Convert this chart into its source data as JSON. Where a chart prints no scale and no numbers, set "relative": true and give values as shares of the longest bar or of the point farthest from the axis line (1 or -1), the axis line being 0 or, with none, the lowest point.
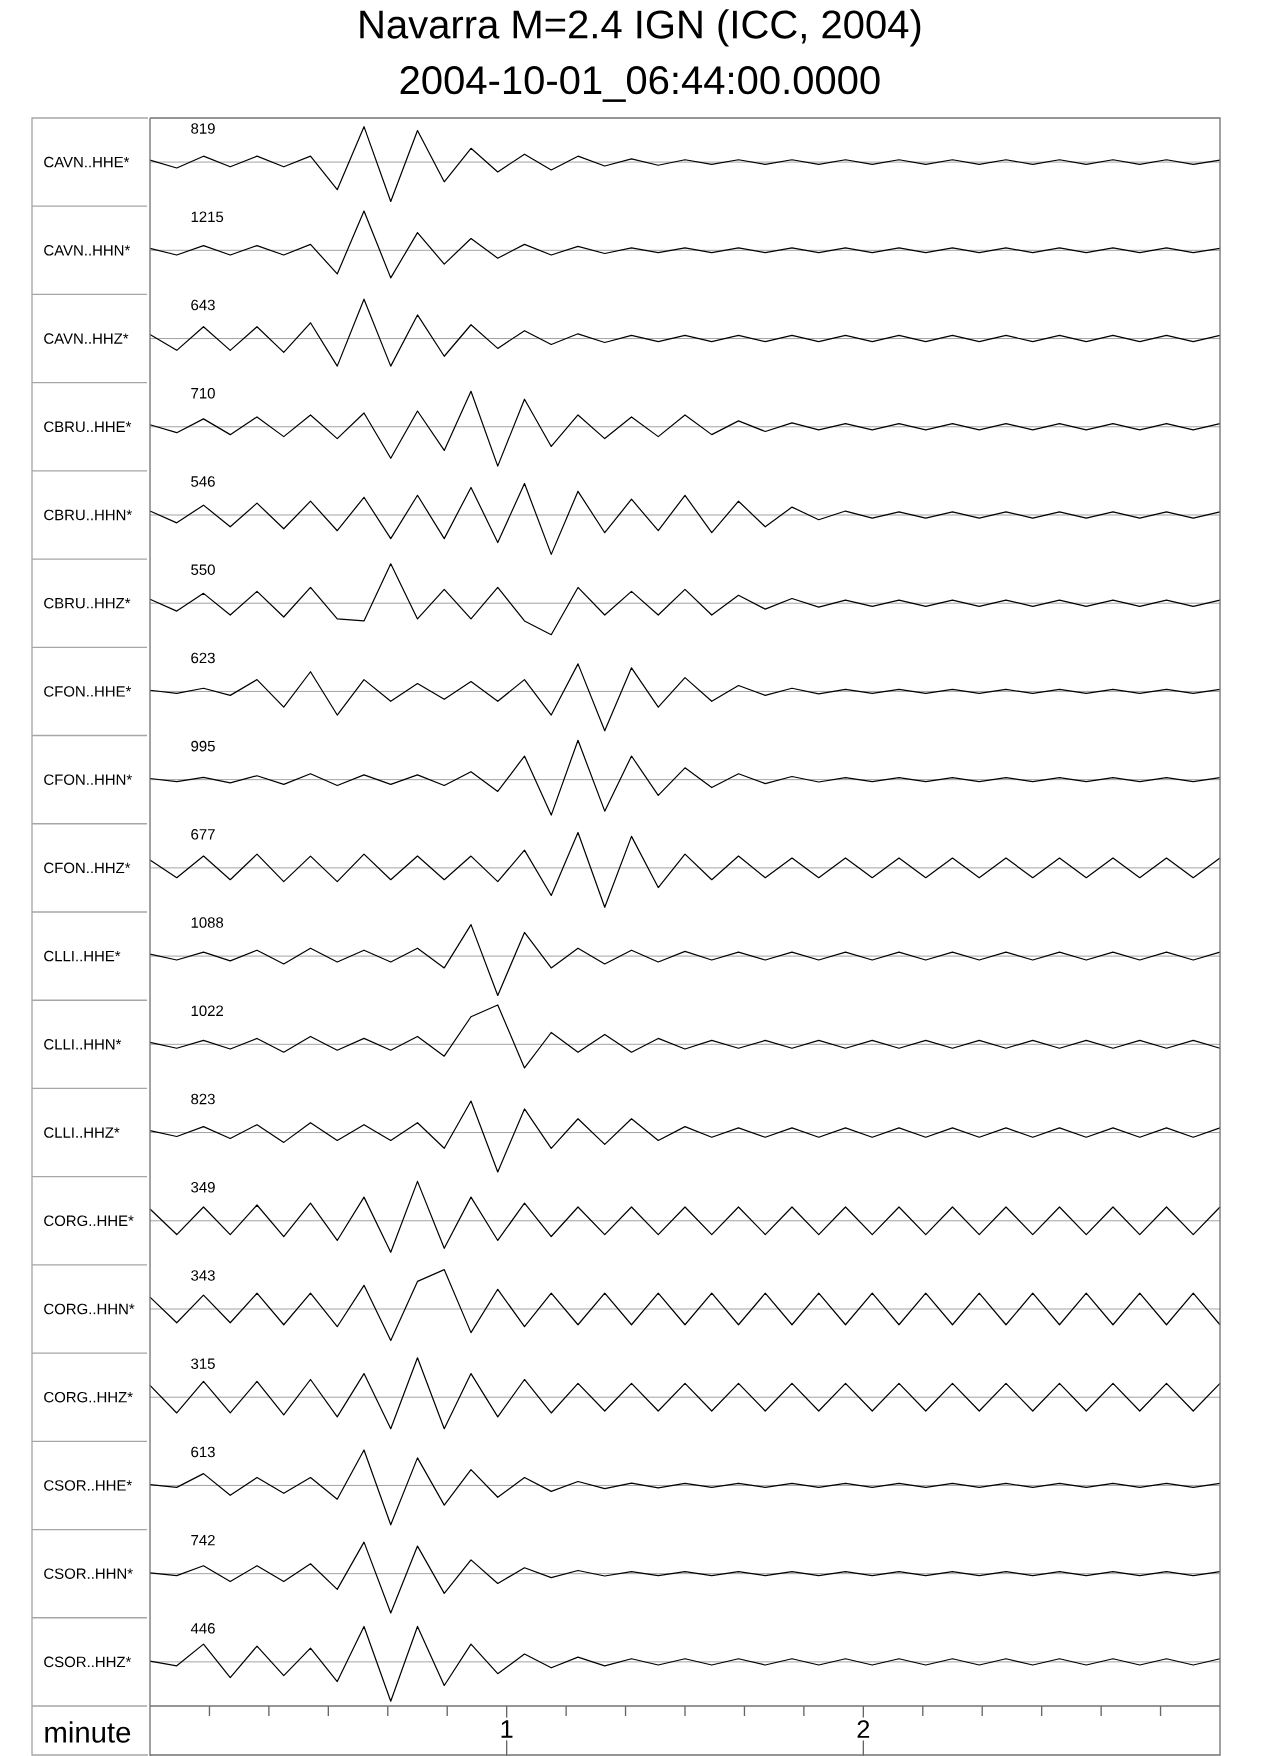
{
  "chart_data": [
    {
      "type": "line",
      "title": "Navarra M=2.4 IGN (ICC, 2004)",
      "subtitle": "2004-10-01_06:44:00.0000",
      "ylabel": "CAVN..HHE*",
      "annotations": [
        "819"
      ],
      "relative": true,
      "tick_labels": false,
      "color": "#000000",
      "categories": [
        null,
        null,
        null,
        null,
        null,
        null,
        null,
        null,
        null,
        null,
        null,
        null,
        null,
        null,
        null,
        null,
        null,
        null,
        null,
        null,
        null,
        null,
        null,
        null,
        null,
        null,
        null,
        null,
        null,
        null,
        null,
        null,
        null,
        null,
        null,
        null,
        null,
        null,
        null,
        null,
        null
      ],
      "values": [
        0.05,
        -0.15,
        0.15,
        -0.12,
        0.15,
        -0.12,
        0.15,
        -0.7,
        0.9,
        -1,
        0.8,
        -0.5,
        0.35,
        -0.25,
        0.2,
        -0.2,
        0.15,
        -0.1,
        0.08,
        -0.08,
        0.06,
        -0.06,
        0.06,
        -0.06,
        0.06,
        -0.06,
        0.06,
        -0.06,
        0.06,
        -0.06,
        0.06,
        -0.06,
        0.06,
        -0.06,
        0.06,
        -0.06,
        0.06,
        -0.06,
        0.06,
        -0.06,
        0.05
      ]
    },
    {
      "type": "line",
      "ylabel": "CAVN..HHN*",
      "annotations": [
        "1215"
      ],
      "relative": true,
      "tick_labels": false,
      "color": "#000000",
      "categories": [
        null,
        null,
        null,
        null,
        null,
        null,
        null,
        null,
        null,
        null,
        null,
        null,
        null,
        null,
        null,
        null,
        null,
        null,
        null,
        null,
        null,
        null,
        null,
        null,
        null,
        null,
        null,
        null,
        null,
        null,
        null,
        null,
        null,
        null,
        null,
        null,
        null,
        null,
        null,
        null,
        null
      ],
      "values": [
        0.05,
        -0.12,
        0.12,
        -0.12,
        0.12,
        -0.12,
        0.15,
        -0.6,
        1,
        -0.7,
        0.45,
        -0.35,
        0.3,
        -0.2,
        0.15,
        -0.12,
        0.1,
        -0.08,
        0.06,
        -0.06,
        0.06,
        -0.06,
        0.06,
        -0.06,
        0.06,
        -0.06,
        0.06,
        -0.06,
        0.06,
        -0.06,
        0.06,
        -0.06,
        0.06,
        -0.06,
        0.06,
        -0.06,
        0.06,
        -0.06,
        0.06,
        -0.06,
        0.05
      ]
    },
    {
      "type": "line",
      "ylabel": "CAVN..HHZ*",
      "annotations": [
        "643"
      ],
      "relative": true,
      "tick_labels": false,
      "color": "#000000",
      "categories": [
        null,
        null,
        null,
        null,
        null,
        null,
        null,
        null,
        null,
        null,
        null,
        null,
        null,
        null,
        null,
        null,
        null,
        null,
        null,
        null,
        null,
        null,
        null,
        null,
        null,
        null,
        null,
        null,
        null,
        null,
        null,
        null,
        null,
        null,
        null,
        null,
        null,
        null,
        null,
        null,
        null
      ],
      "values": [
        0.1,
        -0.3,
        0.3,
        -0.3,
        0.3,
        -0.35,
        0.4,
        -0.7,
        1,
        -0.7,
        0.6,
        -0.45,
        0.35,
        -0.25,
        0.2,
        -0.15,
        0.12,
        -0.1,
        0.08,
        -0.08,
        0.08,
        -0.08,
        0.08,
        -0.08,
        0.08,
        -0.08,
        0.08,
        -0.08,
        0.08,
        -0.08,
        0.08,
        -0.08,
        0.08,
        -0.08,
        0.08,
        -0.08,
        0.08,
        -0.08,
        0.08,
        -0.08,
        0.08
      ]
    },
    {
      "type": "line",
      "ylabel": "CBRU..HHE*",
      "annotations": [
        "710"
      ],
      "relative": true,
      "tick_labels": false,
      "color": "#000000",
      "categories": [
        null,
        null,
        null,
        null,
        null,
        null,
        null,
        null,
        null,
        null,
        null,
        null,
        null,
        null,
        null,
        null,
        null,
        null,
        null,
        null,
        null,
        null,
        null,
        null,
        null,
        null,
        null,
        null,
        null,
        null,
        null,
        null,
        null,
        null,
        null,
        null,
        null,
        null,
        null,
        null,
        null
      ],
      "values": [
        0.05,
        -0.15,
        0.2,
        -0.2,
        0.25,
        -0.25,
        0.3,
        -0.3,
        0.35,
        -0.8,
        0.4,
        -0.6,
        0.9,
        -1,
        0.7,
        -0.5,
        0.3,
        -0.3,
        0.25,
        -0.25,
        0.3,
        -0.2,
        0.15,
        -0.12,
        0.1,
        -0.08,
        0.08,
        -0.08,
        0.08,
        -0.08,
        0.08,
        -0.08,
        0.08,
        -0.08,
        0.08,
        -0.08,
        0.08,
        -0.08,
        0.08,
        -0.08,
        0.08
      ]
    },
    {
      "type": "line",
      "ylabel": "CBRU..HHN*",
      "annotations": [
        "546"
      ],
      "relative": true,
      "tick_labels": false,
      "color": "#000000",
      "categories": [
        null,
        null,
        null,
        null,
        null,
        null,
        null,
        null,
        null,
        null,
        null,
        null,
        null,
        null,
        null,
        null,
        null,
        null,
        null,
        null,
        null,
        null,
        null,
        null,
        null,
        null,
        null,
        null,
        null,
        null,
        null,
        null,
        null,
        null,
        null,
        null,
        null,
        null,
        null,
        null,
        null
      ],
      "values": [
        0.1,
        -0.2,
        0.25,
        -0.3,
        0.3,
        -0.35,
        0.35,
        -0.4,
        0.45,
        -0.6,
        0.5,
        -0.6,
        0.7,
        -0.7,
        0.8,
        -1,
        0.6,
        -0.45,
        0.4,
        -0.4,
        0.5,
        -0.45,
        0.35,
        -0.3,
        0.2,
        -0.12,
        0.1,
        -0.08,
        0.08,
        -0.08,
        0.08,
        -0.08,
        0.08,
        -0.08,
        0.08,
        -0.08,
        0.08,
        -0.08,
        0.08,
        -0.08,
        0.08
      ]
    },
    {
      "type": "line",
      "ylabel": "CBRU..HHZ*",
      "annotations": [
        "550"
      ],
      "relative": true,
      "tick_labels": false,
      "color": "#000000",
      "categories": [
        null,
        null,
        null,
        null,
        null,
        null,
        null,
        null,
        null,
        null,
        null,
        null,
        null,
        null,
        null,
        null,
        null,
        null,
        null,
        null,
        null,
        null,
        null,
        null,
        null,
        null,
        null,
        null,
        null,
        null,
        null,
        null,
        null,
        null,
        null,
        null,
        null,
        null,
        null,
        null,
        null
      ],
      "values": [
        0.1,
        -0.2,
        0.25,
        -0.3,
        0.3,
        -0.35,
        0.4,
        -0.4,
        -0.45,
        1,
        -0.4,
        0.35,
        -0.4,
        0.4,
        -0.45,
        -0.8,
        0.4,
        -0.3,
        0.3,
        -0.3,
        0.35,
        -0.3,
        0.2,
        -0.15,
        0.12,
        -0.1,
        0.08,
        -0.08,
        0.08,
        -0.08,
        0.08,
        -0.08,
        0.08,
        -0.08,
        0.08,
        -0.08,
        0.08,
        -0.08,
        0.08,
        -0.08,
        0.08
      ]
    },
    {
      "type": "line",
      "ylabel": "CFON..HHE*",
      "annotations": [
        "623"
      ],
      "relative": true,
      "tick_labels": false,
      "color": "#000000",
      "categories": [
        null,
        null,
        null,
        null,
        null,
        null,
        null,
        null,
        null,
        null,
        null,
        null,
        null,
        null,
        null,
        null,
        null,
        null,
        null,
        null,
        null,
        null,
        null,
        null,
        null,
        null,
        null,
        null,
        null,
        null,
        null,
        null,
        null,
        null,
        null,
        null,
        null,
        null,
        null,
        null,
        null
      ],
      "values": [
        0.03,
        -0.05,
        0.08,
        -0.1,
        0.3,
        -0.4,
        0.5,
        -0.6,
        0.3,
        -0.25,
        0.2,
        -0.2,
        0.25,
        -0.25,
        0.3,
        -0.6,
        0.7,
        -1,
        0.6,
        -0.4,
        0.35,
        -0.25,
        0.15,
        -0.1,
        0.08,
        -0.06,
        0.05,
        -0.05,
        0.05,
        -0.05,
        0.05,
        -0.05,
        0.05,
        -0.05,
        0.05,
        -0.05,
        0.05,
        -0.05,
        0.05,
        -0.05,
        0.05
      ]
    },
    {
      "type": "line",
      "ylabel": "CFON..HHN*",
      "annotations": [
        "995"
      ],
      "relative": true,
      "tick_labels": false,
      "color": "#000000",
      "categories": [
        null,
        null,
        null,
        null,
        null,
        null,
        null,
        null,
        null,
        null,
        null,
        null,
        null,
        null,
        null,
        null,
        null,
        null,
        null,
        null,
        null,
        null,
        null,
        null,
        null,
        null,
        null,
        null,
        null,
        null,
        null,
        null,
        null,
        null,
        null,
        null,
        null,
        null,
        null,
        null,
        null
      ],
      "values": [
        0.03,
        -0.05,
        0.06,
        -0.08,
        0.1,
        -0.12,
        0.15,
        -0.15,
        0.12,
        -0.12,
        0.12,
        -0.15,
        0.2,
        -0.3,
        0.6,
        -0.9,
        1,
        -0.8,
        0.6,
        -0.4,
        0.3,
        -0.2,
        0.15,
        -0.1,
        0.08,
        -0.06,
        0.05,
        -0.05,
        0.05,
        -0.05,
        0.05,
        -0.05,
        0.05,
        -0.05,
        0.05,
        -0.05,
        0.05,
        -0.05,
        0.05,
        -0.05,
        0.05
      ]
    },
    {
      "type": "line",
      "ylabel": "CFON..HHZ*",
      "annotations": [
        "677"
      ],
      "relative": true,
      "tick_labels": false,
      "color": "#000000",
      "categories": [
        null,
        null,
        null,
        null,
        null,
        null,
        null,
        null,
        null,
        null,
        null,
        null,
        null,
        null,
        null,
        null,
        null,
        null,
        null,
        null,
        null,
        null,
        null,
        null,
        null,
        null,
        null,
        null,
        null,
        null,
        null,
        null,
        null,
        null,
        null,
        null,
        null,
        null,
        null,
        null,
        null
      ],
      "values": [
        0.2,
        -0.25,
        0.3,
        -0.3,
        0.35,
        -0.35,
        0.3,
        -0.35,
        0.35,
        -0.3,
        0.3,
        -0.3,
        0.3,
        -0.35,
        0.45,
        -0.7,
        0.9,
        -1,
        0.8,
        -0.5,
        0.35,
        -0.3,
        0.3,
        -0.25,
        0.25,
        -0.25,
        0.25,
        -0.25,
        0.25,
        -0.25,
        0.25,
        -0.25,
        0.25,
        -0.25,
        0.25,
        -0.25,
        0.25,
        -0.25,
        0.25,
        -0.25,
        0.25
      ]
    },
    {
      "type": "line",
      "ylabel": "CLLI..HHE*",
      "annotations": [
        "1088"
      ],
      "relative": true,
      "tick_labels": false,
      "color": "#000000",
      "categories": [
        null,
        null,
        null,
        null,
        null,
        null,
        null,
        null,
        null,
        null,
        null,
        null,
        null,
        null,
        null,
        null,
        null,
        null,
        null,
        null,
        null,
        null,
        null,
        null,
        null,
        null,
        null,
        null,
        null,
        null,
        null,
        null,
        null,
        null,
        null,
        null,
        null,
        null,
        null,
        null,
        null
      ],
      "values": [
        0.05,
        -0.1,
        0.1,
        -0.12,
        0.15,
        -0.2,
        0.2,
        -0.15,
        0.15,
        -0.15,
        0.2,
        -0.3,
        0.8,
        -1,
        0.6,
        -0.3,
        0.2,
        -0.2,
        0.15,
        -0.15,
        0.12,
        -0.1,
        0.1,
        -0.1,
        0.1,
        -0.1,
        0.1,
        -0.1,
        0.1,
        -0.1,
        0.1,
        -0.1,
        0.1,
        -0.1,
        0.1,
        -0.1,
        0.1,
        -0.1,
        0.1,
        -0.1,
        0.1
      ]
    },
    {
      "type": "line",
      "ylabel": "CLLI..HHN*",
      "annotations": [
        "1022"
      ],
      "relative": true,
      "tick_labels": false,
      "color": "#000000",
      "categories": [
        null,
        null,
        null,
        null,
        null,
        null,
        null,
        null,
        null,
        null,
        null,
        null,
        null,
        null,
        null,
        null,
        null,
        null,
        null,
        null,
        null,
        null,
        null,
        null,
        null,
        null,
        null,
        null,
        null,
        null,
        null,
        null,
        null,
        null,
        null,
        null,
        null,
        null,
        null,
        null,
        null
      ],
      "values": [
        0.05,
        -0.1,
        0.1,
        -0.12,
        0.15,
        -0.2,
        0.2,
        -0.15,
        0.15,
        -0.15,
        0.2,
        -0.3,
        0.7,
        1,
        -0.6,
        0.3,
        -0.2,
        0.25,
        -0.2,
        0.15,
        -0.12,
        0.1,
        -0.1,
        0.1,
        -0.1,
        0.1,
        -0.1,
        0.1,
        -0.1,
        0.1,
        -0.1,
        0.1,
        -0.1,
        0.1,
        -0.1,
        0.1,
        -0.1,
        0.1,
        -0.1,
        0.1,
        -0.1
      ]
    },
    {
      "type": "line",
      "ylabel": "CLLI..HHZ*",
      "annotations": [
        "823"
      ],
      "relative": true,
      "tick_labels": false,
      "color": "#000000",
      "categories": [
        null,
        null,
        null,
        null,
        null,
        null,
        null,
        null,
        null,
        null,
        null,
        null,
        null,
        null,
        null,
        null,
        null,
        null,
        null,
        null,
        null,
        null,
        null,
        null,
        null,
        null,
        null,
        null,
        null,
        null,
        null,
        null,
        null,
        null,
        null,
        null,
        null,
        null,
        null,
        null,
        null
      ],
      "values": [
        0.05,
        -0.1,
        0.15,
        -0.15,
        0.2,
        -0.25,
        0.25,
        -0.2,
        0.2,
        -0.2,
        0.25,
        -0.4,
        0.8,
        -1,
        0.6,
        -0.4,
        0.35,
        -0.3,
        0.35,
        -0.2,
        0.15,
        -0.12,
        0.12,
        -0.12,
        0.12,
        -0.12,
        0.12,
        -0.12,
        0.12,
        -0.12,
        0.12,
        -0.12,
        0.12,
        -0.12,
        0.12,
        -0.12,
        0.12,
        -0.12,
        0.12,
        -0.12,
        0.12
      ]
    },
    {
      "type": "line",
      "ylabel": "CORG..HHE*",
      "annotations": [
        "349"
      ],
      "relative": true,
      "tick_labels": false,
      "color": "#000000",
      "categories": [
        null,
        null,
        null,
        null,
        null,
        null,
        null,
        null,
        null,
        null,
        null,
        null,
        null,
        null,
        null,
        null,
        null,
        null,
        null,
        null,
        null,
        null,
        null,
        null,
        null,
        null,
        null,
        null,
        null,
        null,
        null,
        null,
        null,
        null,
        null,
        null,
        null,
        null,
        null,
        null,
        null
      ],
      "values": [
        0.3,
        -0.35,
        0.35,
        -0.35,
        0.4,
        -0.4,
        0.45,
        -0.5,
        0.6,
        -0.8,
        1,
        -0.7,
        0.6,
        -0.5,
        0.45,
        -0.4,
        0.35,
        -0.35,
        0.35,
        -0.35,
        0.35,
        -0.35,
        0.35,
        -0.35,
        0.35,
        -0.35,
        0.35,
        -0.35,
        0.35,
        -0.35,
        0.35,
        -0.35,
        0.35,
        -0.35,
        0.35,
        -0.35,
        0.35,
        -0.35,
        0.35,
        -0.35,
        0.35
      ]
    },
    {
      "type": "line",
      "ylabel": "CORG..HHN*",
      "annotations": [
        "343"
      ],
      "relative": true,
      "tick_labels": false,
      "color": "#000000",
      "categories": [
        null,
        null,
        null,
        null,
        null,
        null,
        null,
        null,
        null,
        null,
        null,
        null,
        null,
        null,
        null,
        null,
        null,
        null,
        null,
        null,
        null,
        null,
        null,
        null,
        null,
        null,
        null,
        null,
        null,
        null,
        null,
        null,
        null,
        null,
        null,
        null,
        null,
        null,
        null,
        null,
        null
      ],
      "values": [
        0.3,
        -0.35,
        0.35,
        -0.35,
        0.4,
        -0.4,
        0.4,
        -0.45,
        0.6,
        -0.8,
        0.7,
        1,
        -0.6,
        0.5,
        -0.45,
        0.4,
        -0.4,
        0.4,
        -0.4,
        0.4,
        -0.4,
        0.4,
        -0.4,
        0.4,
        -0.4,
        0.4,
        -0.4,
        0.4,
        -0.4,
        0.4,
        -0.4,
        0.4,
        -0.4,
        0.4,
        -0.4,
        0.4,
        -0.4,
        0.4,
        -0.4,
        0.4,
        -0.4
      ]
    },
    {
      "type": "line",
      "ylabel": "CORG..HHZ*",
      "annotations": [
        "315"
      ],
      "relative": true,
      "tick_labels": false,
      "color": "#000000",
      "categories": [
        null,
        null,
        null,
        null,
        null,
        null,
        null,
        null,
        null,
        null,
        null,
        null,
        null,
        null,
        null,
        null,
        null,
        null,
        null,
        null,
        null,
        null,
        null,
        null,
        null,
        null,
        null,
        null,
        null,
        null,
        null,
        null,
        null,
        null,
        null,
        null,
        null,
        null,
        null,
        null,
        null
      ],
      "values": [
        0.3,
        -0.4,
        0.4,
        -0.4,
        0.4,
        -0.45,
        0.45,
        -0.5,
        0.6,
        -0.8,
        1,
        -0.8,
        0.6,
        -0.5,
        0.45,
        -0.4,
        0.35,
        -0.35,
        0.35,
        -0.35,
        0.35,
        -0.35,
        0.35,
        -0.35,
        0.35,
        -0.35,
        0.35,
        -0.35,
        0.35,
        -0.35,
        0.35,
        -0.35,
        0.35,
        -0.35,
        0.35,
        -0.35,
        0.35,
        -0.35,
        0.35,
        -0.35,
        0.35
      ]
    },
    {
      "type": "line",
      "ylabel": "CSOR..HHE*",
      "annotations": [
        "613"
      ],
      "relative": true,
      "tick_labels": false,
      "color": "#000000",
      "categories": [
        null,
        null,
        null,
        null,
        null,
        null,
        null,
        null,
        null,
        null,
        null,
        null,
        null,
        null,
        null,
        null,
        null,
        null,
        null,
        null,
        null,
        null,
        null,
        null,
        null,
        null,
        null,
        null,
        null,
        null,
        null,
        null,
        null,
        null,
        null,
        null,
        null,
        null,
        null,
        null,
        null
      ],
      "values": [
        0.02,
        -0.05,
        0.3,
        -0.25,
        0.2,
        -0.2,
        0.2,
        -0.35,
        0.9,
        -1,
        0.7,
        -0.5,
        0.4,
        -0.3,
        0.2,
        -0.15,
        0.1,
        -0.08,
        0.06,
        -0.06,
        0.05,
        -0.05,
        0.05,
        -0.05,
        0.05,
        -0.05,
        0.05,
        -0.05,
        0.05,
        -0.05,
        0.05,
        -0.05,
        0.05,
        -0.05,
        0.05,
        -0.05,
        0.05,
        -0.05,
        0.05,
        -0.05,
        0.05
      ]
    },
    {
      "type": "line",
      "ylabel": "CSOR..HHN*",
      "annotations": [
        "742"
      ],
      "relative": true,
      "tick_labels": false,
      "color": "#000000",
      "categories": [
        null,
        null,
        null,
        null,
        null,
        null,
        null,
        null,
        null,
        null,
        null,
        null,
        null,
        null,
        null,
        null,
        null,
        null,
        null,
        null,
        null,
        null,
        null,
        null,
        null,
        null,
        null,
        null,
        null,
        null,
        null,
        null,
        null,
        null,
        null,
        null,
        null,
        null,
        null,
        null,
        null
      ],
      "values": [
        0.02,
        -0.05,
        0.2,
        -0.2,
        0.2,
        -0.2,
        0.25,
        -0.4,
        0.8,
        -1,
        0.7,
        -0.5,
        0.35,
        -0.25,
        0.15,
        -0.1,
        0.08,
        -0.06,
        0.05,
        -0.05,
        0.05,
        -0.05,
        0.05,
        -0.05,
        0.05,
        -0.05,
        0.05,
        -0.05,
        0.05,
        -0.05,
        0.05,
        -0.05,
        0.05,
        -0.05,
        0.05,
        -0.05,
        0.05,
        -0.05,
        0.05,
        -0.05,
        0.05
      ]
    },
    {
      "type": "line",
      "ylabel": "CSOR..HHZ*",
      "xlabel": "minute",
      "annotations": [
        "446"
      ],
      "relative": true,
      "tick_labels": "x",
      "xlim": [
        0,
        3
      ],
      "color": "#000000",
      "xticks": [
        {
          "value": 0.1667,
          "label": null
        },
        {
          "value": 0.3333,
          "label": null
        },
        {
          "value": 0.5,
          "label": null
        },
        {
          "value": 0.6667,
          "label": null
        },
        {
          "value": 0.8333,
          "label": null
        },
        1,
        {
          "value": 1.1667,
          "label": null
        },
        {
          "value": 1.3333,
          "label": null
        },
        {
          "value": 1.5,
          "label": null
        },
        {
          "value": 1.6667,
          "label": null
        },
        {
          "value": 1.8333,
          "label": null
        },
        2,
        {
          "value": 2.1667,
          "label": null
        },
        {
          "value": 2.3333,
          "label": null
        },
        {
          "value": 2.5,
          "label": null
        },
        {
          "value": 2.6667,
          "label": null
        },
        {
          "value": 2.8333,
          "label": null
        }
      ],
      "x": [
        0,
        0.075,
        0.15,
        0.225,
        0.3,
        0.375,
        0.45,
        0.525,
        0.6,
        0.675,
        0.75,
        0.825,
        0.9,
        0.975,
        1.05,
        1.125,
        1.2,
        1.275,
        1.35,
        1.425,
        1.5,
        1.575,
        1.65,
        1.725,
        1.8,
        1.875,
        1.95,
        2.025,
        2.1,
        2.175,
        2.25,
        2.325,
        2.4,
        2.475,
        2.55,
        2.625,
        2.7,
        2.775,
        2.85,
        2.925,
        3
      ],
      "values": [
        0.02,
        -0.1,
        0.45,
        -0.4,
        0.4,
        -0.35,
        0.35,
        -0.5,
        0.9,
        -1,
        0.9,
        -0.6,
        0.45,
        -0.3,
        0.2,
        -0.15,
        0.12,
        -0.1,
        0.08,
        -0.08,
        0.08,
        -0.08,
        0.08,
        -0.08,
        0.08,
        -0.08,
        0.08,
        -0.08,
        0.08,
        -0.08,
        0.08,
        -0.08,
        0.08,
        -0.08,
        0.08,
        -0.08,
        0.08,
        -0.08,
        0.08,
        -0.08,
        0.08
      ]
    }
  ]
}
